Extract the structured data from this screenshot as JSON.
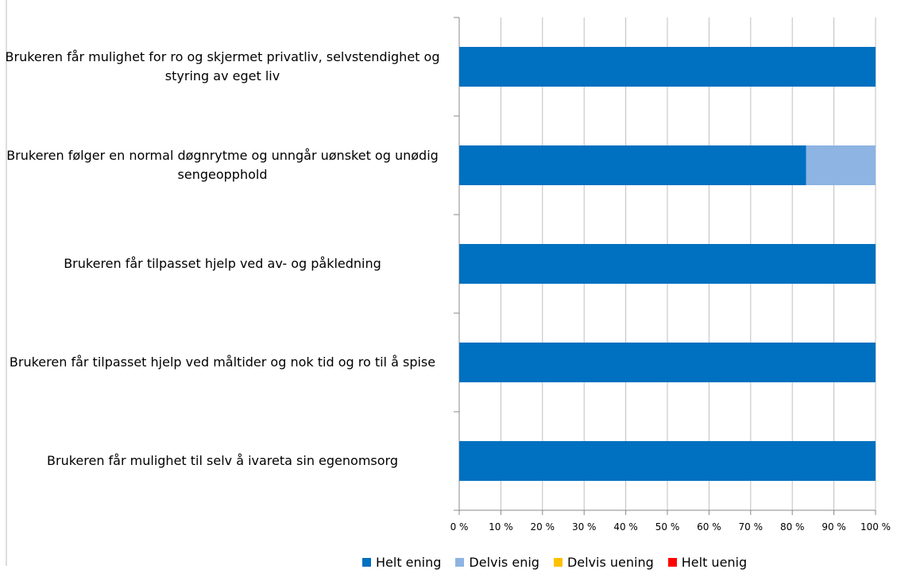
{
  "chart_data": {
    "type": "stacked-bar-horizontal",
    "categories": [
      "Brukeren får mulighet for ro og skjermet privatliv, selvstendighet og styring av eget liv",
      "Brukeren følger en normal døgnrytme og unngår uønsket og unødig sengeopphold",
      "Brukeren får tilpasset hjelp ved av- og påkledning",
      "Brukeren får tilpasset hjelp ved måltider og nok tid og ro til å spise",
      "Brukeren får mulighet til selv å ivareta sin egenomsorg"
    ],
    "series": [
      {
        "name": "Helt ening",
        "color": "#0070c0",
        "values": [
          100,
          83.3,
          100,
          100,
          100
        ]
      },
      {
        "name": "Delvis enig",
        "color": "#8db4e2",
        "values": [
          0,
          16.7,
          0,
          0,
          0
        ]
      },
      {
        "name": "Delvis uening",
        "color": "#ffc000",
        "values": [
          0,
          0,
          0,
          0,
          0
        ]
      },
      {
        "name": "Helt uenig",
        "color": "#ff0000",
        "values": [
          0,
          0,
          0,
          0,
          0
        ]
      }
    ],
    "xlim": [
      0,
      100
    ],
    "xticks": [
      {
        "value": 0,
        "label": "0 %"
      },
      {
        "value": 10,
        "label": "10 %"
      },
      {
        "value": 20,
        "label": "20 %"
      },
      {
        "value": 30,
        "label": "30 %"
      },
      {
        "value": 40,
        "label": "40 %"
      },
      {
        "value": 50,
        "label": "50 %"
      },
      {
        "value": 60,
        "label": "60 %"
      },
      {
        "value": 70,
        "label": "70 %"
      },
      {
        "value": 80,
        "label": "80 %"
      },
      {
        "value": 90,
        "label": "90 %"
      },
      {
        "value": 100,
        "label": "100 %"
      }
    ],
    "grid": true,
    "legend": "bottom"
  }
}
